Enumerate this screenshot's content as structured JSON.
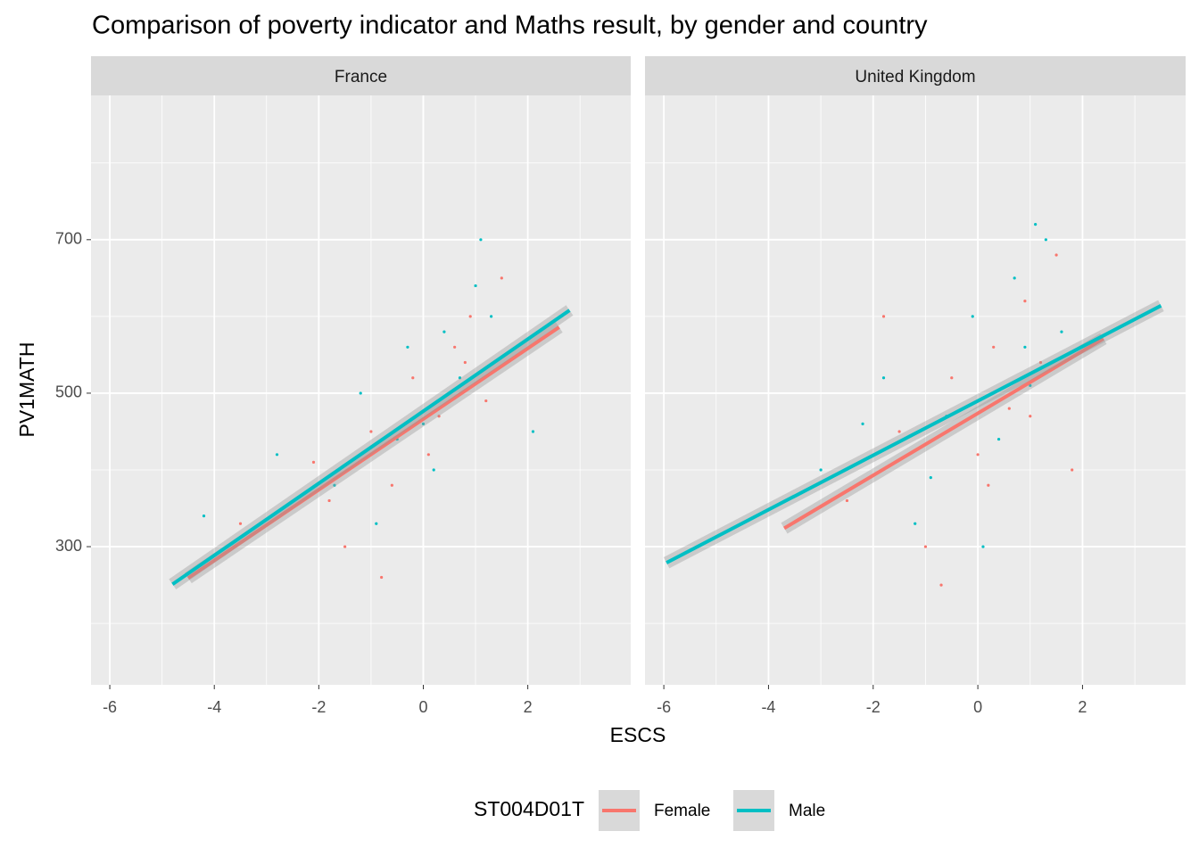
{
  "chart_data": {
    "type": "scatter",
    "title": "Comparison of poverty indicator and Maths result, by gender and country",
    "x_label": "ESCS",
    "y_label": "PV1MATH",
    "xlim": [
      -6.36,
      3.97
    ],
    "xticks": [
      -6,
      -4,
      -2,
      0,
      2
    ],
    "minor_xticks": [
      -5,
      -3,
      -1,
      1,
      3
    ],
    "ylim": [
      120,
      888
    ],
    "yticks": [
      300,
      500,
      700
    ],
    "minor_yticks": [
      200,
      400,
      600,
      800
    ],
    "grid": true,
    "legend": {
      "title": "ST004D01T",
      "position": "bottom",
      "entries": [
        {
          "name": "Female",
          "color": "#F8766D"
        },
        {
          "name": "Male",
          "color": "#00BFC4"
        }
      ]
    },
    "facets": [
      {
        "name": "France",
        "points": [
          {
            "name": "Female",
            "color": "#F8766D",
            "x": [
              -3.5,
              -2.1,
              -1.5,
              -1.0,
              -0.6,
              -0.2,
              0.3,
              0.6,
              0.9,
              1.2,
              1.5,
              -0.8,
              0.1,
              0.8,
              -1.8
            ],
            "values": [
              330,
              410,
              300,
              450,
              380,
              520,
              470,
              560,
              600,
              490,
              650,
              260,
              420,
              540,
              360
            ]
          },
          {
            "name": "Male",
            "color": "#00BFC4",
            "x": [
              -4.2,
              -2.8,
              -1.7,
              -1.2,
              -0.5,
              0,
              0.4,
              0.7,
              1.0,
              1.3,
              -0.9,
              0.2,
              1.1,
              -0.3,
              2.1
            ],
            "values": [
              340,
              420,
              380,
              500,
              440,
              460,
              580,
              520,
              640,
              600,
              330,
              400,
              700,
              560,
              450
            ]
          }
        ],
        "fits": [
          {
            "name": "Female",
            "color": "#F8766D",
            "x": [
              -4.5,
              2.6
            ],
            "values": [
              259,
              586
            ]
          },
          {
            "name": "Male",
            "color": "#00BFC4",
            "x": [
              -4.8,
              2.8
            ],
            "values": [
              251,
              608
            ]
          }
        ]
      },
      {
        "name": "United Kingdom",
        "points": [
          {
            "name": "Female",
            "color": "#F8766D",
            "x": [
              -2.5,
              -1.5,
              -1.0,
              -0.5,
              0,
              0.3,
              0.6,
              0.9,
              1.2,
              1.5,
              -0.7,
              0.2,
              1.0,
              -1.8,
              1.8
            ],
            "values": [
              360,
              450,
              300,
              520,
              420,
              560,
              480,
              620,
              540,
              680,
              250,
              380,
              470,
              600,
              400
            ]
          },
          {
            "name": "Male",
            "color": "#00BFC4",
            "x": [
              -3.0,
              -1.8,
              -1.2,
              -0.6,
              -0.1,
              0.4,
              0.7,
              1.0,
              1.3,
              1.6,
              -0.9,
              0.1,
              0.9,
              -2.2,
              1.1
            ],
            "values": [
              400,
              520,
              330,
              470,
              600,
              440,
              650,
              510,
              700,
              580,
              390,
              300,
              560,
              460,
              720
            ]
          }
        ],
        "fits": [
          {
            "name": "Female",
            "color": "#F8766D",
            "x": [
              -3.7,
              2.4
            ],
            "values": [
              324,
              571
            ]
          },
          {
            "name": "Male",
            "color": "#00BFC4",
            "x": [
              -5.95,
              3.5
            ],
            "values": [
              279,
              614
            ]
          }
        ]
      }
    ]
  }
}
